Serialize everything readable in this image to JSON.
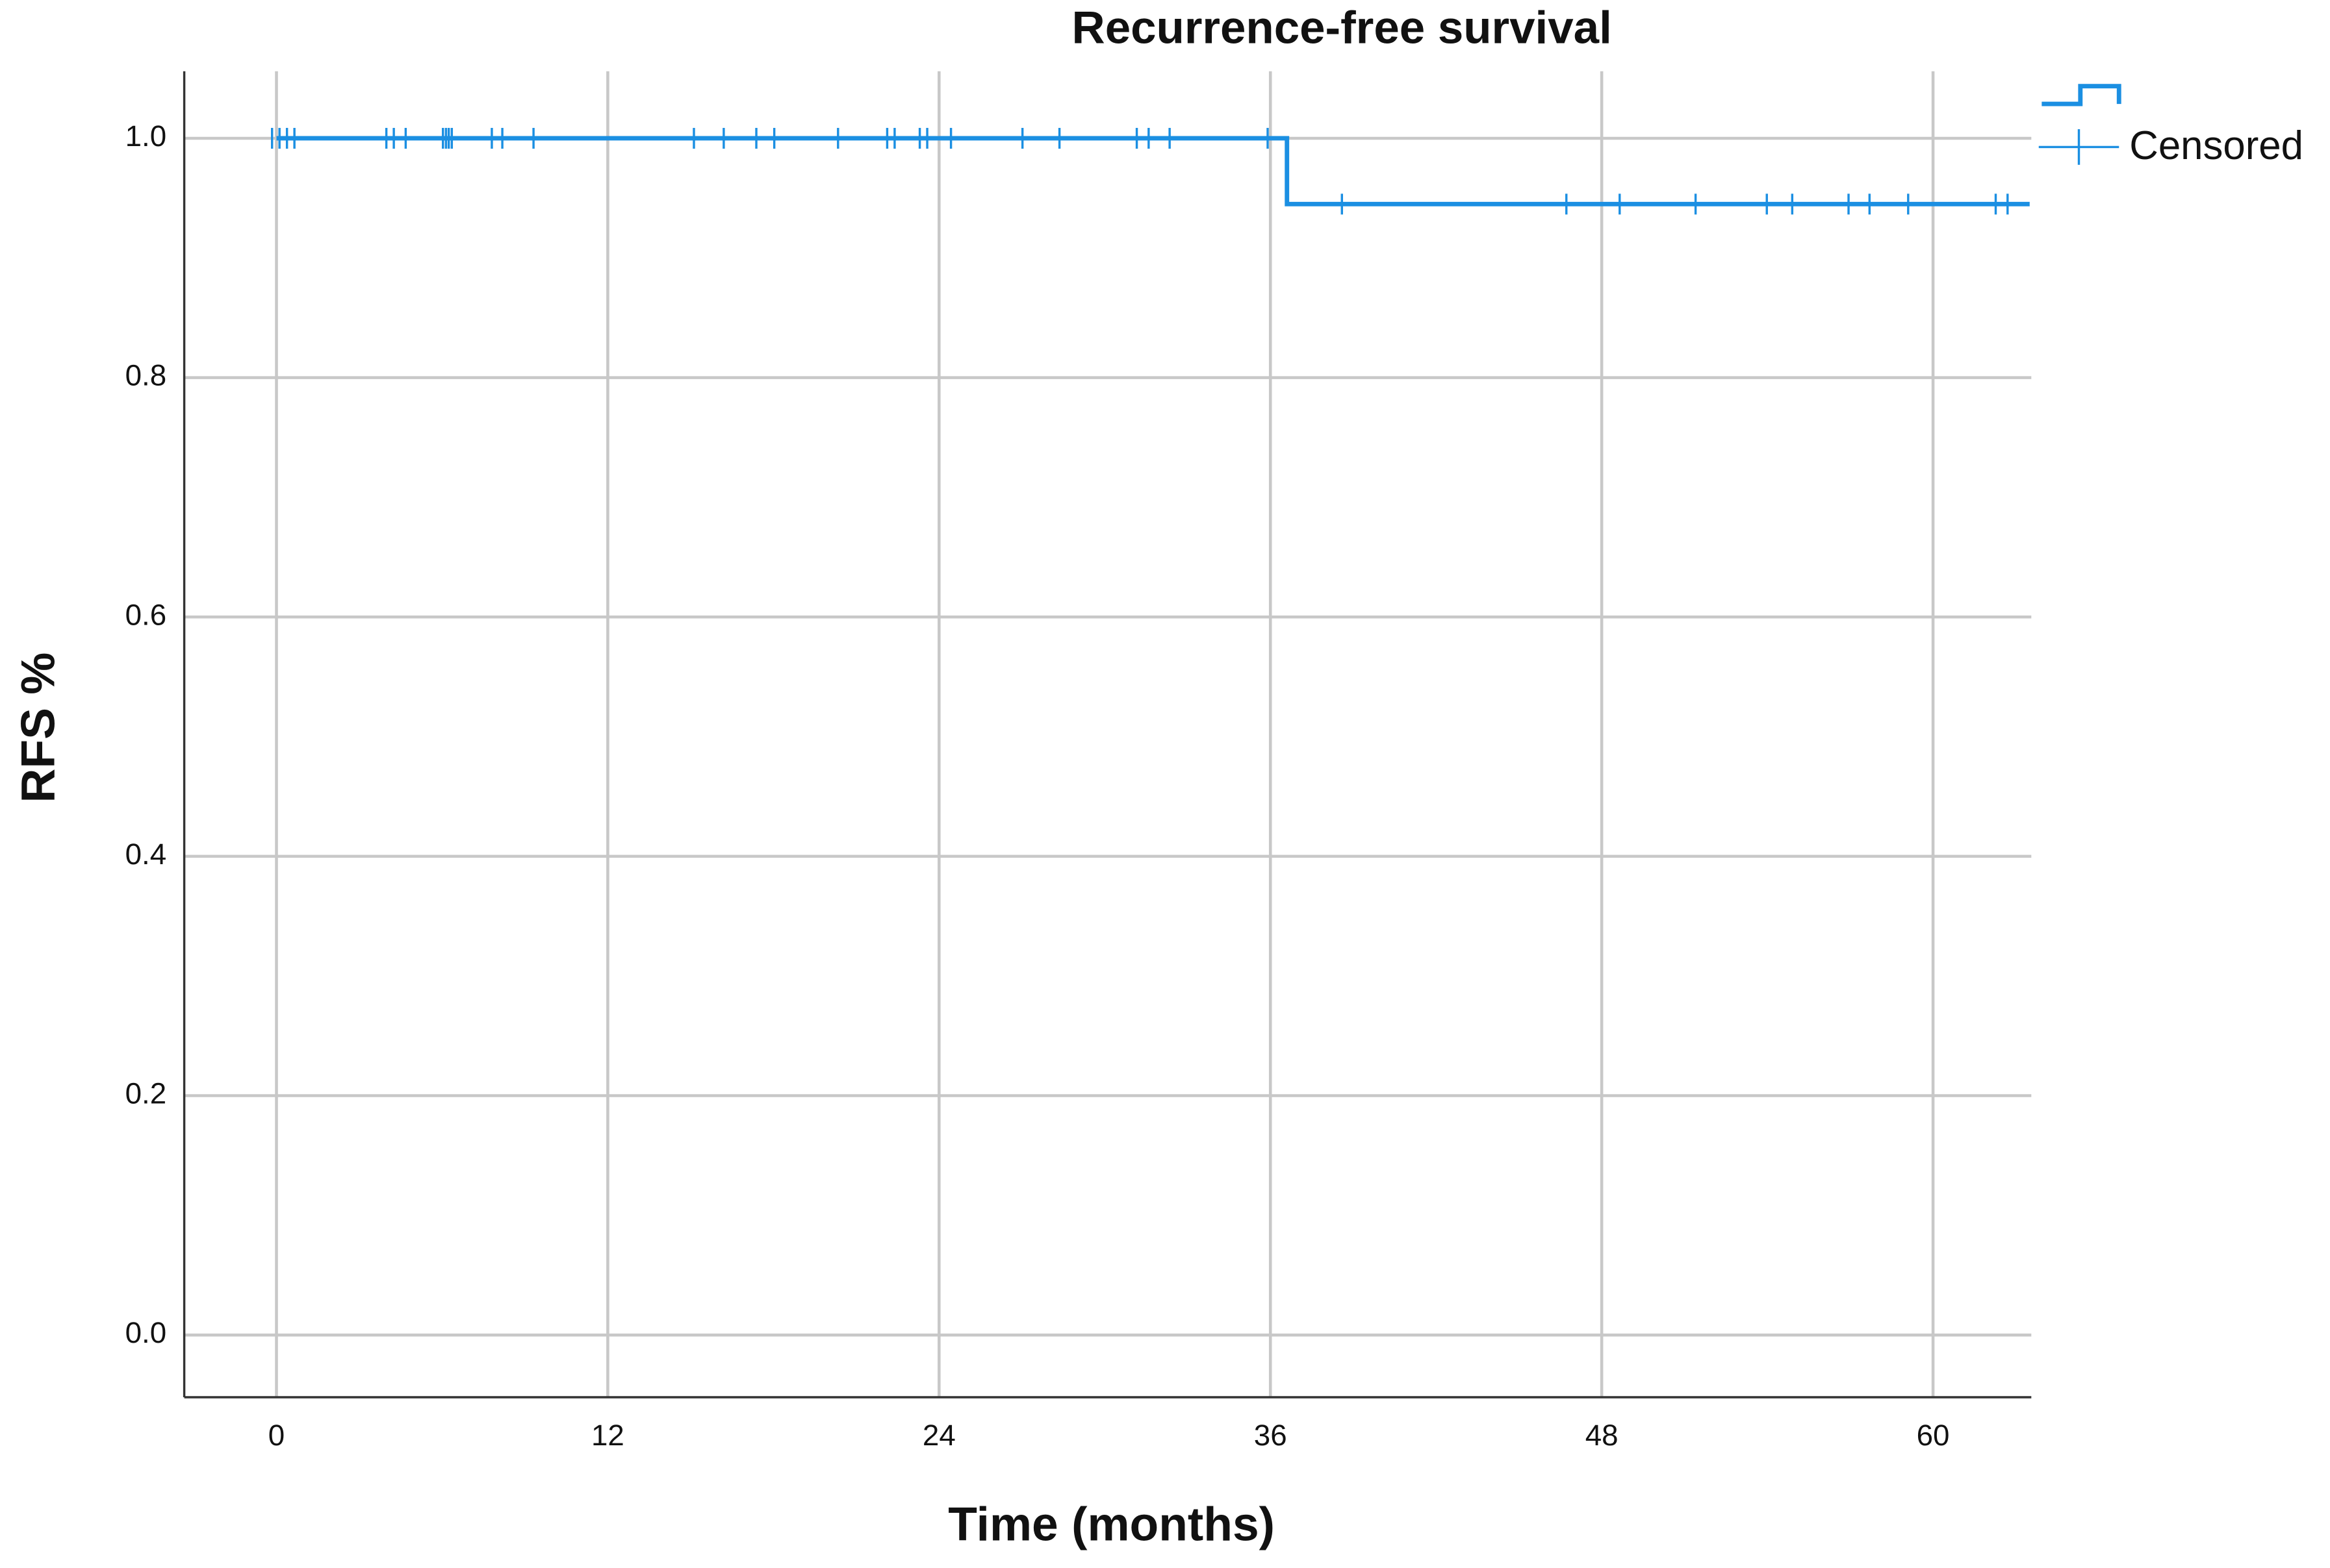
{
  "chart_data": {
    "type": "line",
    "step": true,
    "title": "Recurrence-free survival",
    "x_label": "Time (months)",
    "y_label": "RFS %",
    "xlim": [
      -3.34,
      63.56
    ],
    "ylim": [
      -0.052,
      1.056
    ],
    "xticks": [
      0,
      12,
      24,
      36,
      48,
      60
    ],
    "yticks": [
      {
        "value": 0,
        "label": "0.0"
      },
      0.2,
      0.4,
      0.6,
      0.8,
      {
        "value": 1,
        "label": "1.0"
      }
    ],
    "grid": true,
    "color": "#1b8fe2",
    "x": [
      0,
      36.6,
      36.6,
      63.5
    ],
    "values": [
      1,
      1,
      0.945,
      0.945
    ],
    "censored": {
      "name": "Censored",
      "x": [
        -0.16,
        0.11,
        0.38,
        0.65,
        3.98,
        4.25,
        4.68,
        6.03,
        6.14,
        6.24,
        6.35,
        7.8,
        8.18,
        9.31,
        15.12,
        16.2,
        17.38,
        18.03,
        20.34,
        22.12,
        22.39,
        23.3,
        23.57,
        24.43,
        27.02,
        28.36,
        31.16,
        31.59,
        32.35,
        35.9,
        38.59,
        46.72,
        48.65,
        51.4,
        53.98,
        54.9,
        56.94,
        57.7,
        59.1,
        62.27,
        62.7
      ],
      "y": [
        1,
        1,
        1,
        1,
        1,
        1,
        1,
        1,
        1,
        1,
        1,
        1,
        1,
        1,
        1,
        1,
        1,
        1,
        1,
        1,
        1,
        1,
        1,
        1,
        1,
        1,
        1,
        1,
        1,
        1,
        0.945,
        0.945,
        0.945,
        0.945,
        0.945,
        0.945,
        0.945,
        0.945,
        0.945,
        0.945,
        0.945
      ]
    },
    "legend": "top-right"
  }
}
